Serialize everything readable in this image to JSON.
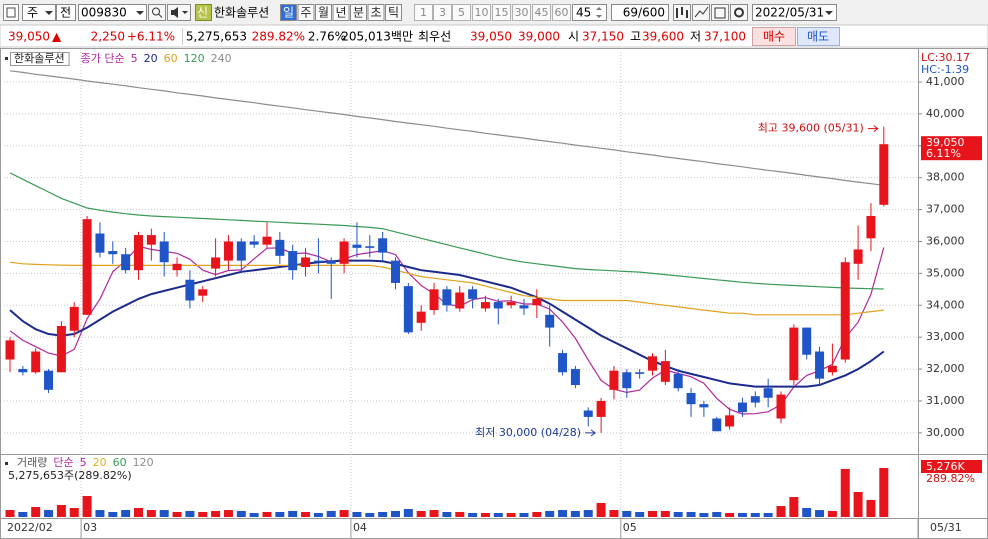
{
  "toolbar": {
    "market": "주",
    "mode": "전",
    "code": "009830",
    "badge": "신",
    "name": "한화솔루션",
    "periods": [
      "일",
      "주",
      "월",
      "년",
      "분",
      "초",
      "틱"
    ],
    "intervals": [
      "1",
      "3",
      "5",
      "10",
      "15",
      "30",
      "45",
      "60"
    ],
    "interval_input": "45",
    "count": "69/600",
    "date": "2022/05/31"
  },
  "quote": {
    "price": "39,050",
    "arrow": "▲",
    "change": "2,250",
    "change_pct": "+6.11%",
    "volume": "5,275,653",
    "volume_ratio": "289.82%",
    "turnover": "2.76%",
    "amount": "205,013백만",
    "best_label": "최우선",
    "ask": "39,050",
    "bid": "39,000",
    "open_label": "시",
    "open": "37,150",
    "high_label": "고",
    "high": "39,600",
    "low_label": "저",
    "low": "37,100",
    "buy": "매수",
    "sell": "매도"
  },
  "chart_data": [
    {
      "type": "candlestick",
      "title": "한화솔루션",
      "line_legend": "종가 단순",
      "up_color": "#e8141c",
      "down_color": "#1f55c6",
      "open": [
        32300,
        32000,
        31900,
        31950,
        31900,
        33200,
        33700,
        36250,
        35700,
        35600,
        35100,
        35900,
        36000,
        35100,
        34800,
        34300,
        35150,
        35400,
        36000,
        36000,
        35900,
        36050,
        35700,
        35200,
        35400,
        35400,
        35300,
        35900,
        35850,
        36100,
        35400,
        34600,
        33450,
        33850,
        34500,
        33900,
        34500,
        33900,
        34100,
        34000,
        34000,
        34000,
        33700,
        32500,
        32000,
        30700,
        30500,
        31350,
        31900,
        31900,
        31950,
        31600,
        31850,
        31250,
        30900,
        30450,
        30200,
        30950,
        31150,
        31400,
        30450,
        31650,
        33300,
        32550,
        31900,
        32300,
        35300,
        36100,
        37150
      ],
      "high": [
        33000,
        32100,
        32650,
        32000,
        33500,
        34100,
        36800,
        36600,
        36000,
        35800,
        36300,
        36400,
        36300,
        35500,
        35100,
        34600,
        36100,
        36200,
        36100,
        36200,
        36600,
        36300,
        35900,
        35800,
        36100,
        35500,
        36100,
        36600,
        36200,
        36300,
        35500,
        34700,
        34000,
        34700,
        34600,
        34600,
        34600,
        34300,
        34200,
        34300,
        34200,
        34500,
        34000,
        32600,
        32100,
        30800,
        31100,
        32100,
        32000,
        32000,
        32500,
        32600,
        32000,
        31400,
        31000,
        30500,
        30800,
        31100,
        31300,
        31700,
        31300,
        33400,
        33300,
        32700,
        32800,
        35500,
        36500,
        37200,
        39600
      ],
      "low": [
        31900,
        31800,
        31850,
        31250,
        31900,
        33000,
        33700,
        35500,
        35300,
        35000,
        34800,
        35400,
        34900,
        34900,
        33900,
        34100,
        34900,
        35100,
        35000,
        35800,
        35800,
        35300,
        34800,
        34900,
        35000,
        34200,
        35000,
        35500,
        35500,
        35400,
        34500,
        33100,
        33200,
        33700,
        33800,
        33800,
        33900,
        33800,
        33400,
        33900,
        33700,
        33600,
        32700,
        31800,
        31400,
        30200,
        30000,
        31050,
        31100,
        31700,
        31800,
        31500,
        31300,
        30500,
        30500,
        30050,
        30100,
        30500,
        30800,
        30800,
        30300,
        31500,
        32300,
        31500,
        31800,
        32200,
        34800,
        35700,
        37100
      ],
      "close": [
        32900,
        31900,
        32550,
        31350,
        33350,
        33950,
        36700,
        35650,
        35600,
        35100,
        36200,
        36200,
        35350,
        35300,
        34150,
        34500,
        35500,
        36000,
        35400,
        35900,
        36150,
        35550,
        35100,
        35500,
        35350,
        35300,
        36000,
        35800,
        35800,
        35650,
        34700,
        33150,
        33800,
        34500,
        34000,
        34400,
        34200,
        34100,
        33900,
        34100,
        33900,
        34200,
        33300,
        31900,
        31500,
        30500,
        31000,
        31950,
        31400,
        31850,
        32400,
        32250,
        31400,
        30900,
        30800,
        30050,
        30550,
        30650,
        30950,
        31100,
        31200,
        33300,
        32450,
        31700,
        32100,
        35350,
        35750,
        36800,
        39050
      ],
      "lines": [
        {
          "name": "5",
          "color": "#b0279f",
          "values": [
            33200,
            32900,
            32700,
            32500,
            32410,
            32620,
            33580,
            34200,
            35050,
            35400,
            35850,
            35750,
            35690,
            35630,
            35440,
            35100,
            34960,
            35090,
            35110,
            35460,
            35790,
            35800,
            35620,
            35640,
            35530,
            35360,
            35450,
            35590,
            35650,
            35710,
            35590,
            35020,
            34620,
            34360,
            34030,
            33970,
            34180,
            34240,
            34120,
            34140,
            34040,
            34040,
            33880,
            33480,
            32960,
            32280,
            31640,
            31370,
            31270,
            31340,
            31720,
            31970,
            31860,
            31760,
            31550,
            31080,
            30740,
            30590,
            30600,
            30660,
            30890,
            31440,
            31800,
            31950,
            32150,
            32980,
            33470,
            34340,
            35810
          ]
        },
        {
          "name": "20",
          "color": "#1c2a8c",
          "values": [
            33850,
            33500,
            33250,
            33100,
            33050,
            33100,
            33300,
            33550,
            33800,
            34000,
            34200,
            34350,
            34450,
            34550,
            34650,
            34750,
            34850,
            34950,
            35050,
            35100,
            35150,
            35200,
            35250,
            35300,
            35350,
            35380,
            35400,
            35400,
            35400,
            35380,
            35300,
            35200,
            35100,
            35050,
            35000,
            34950,
            34850,
            34750,
            34650,
            34550,
            34400,
            34250,
            34050,
            33800,
            33550,
            33300,
            33050,
            32850,
            32650,
            32450,
            32250,
            32100,
            31950,
            31850,
            31750,
            31650,
            31550,
            31500,
            31450,
            31450,
            31450,
            31450,
            31450,
            31500,
            31650,
            31800,
            32000,
            32250,
            32550
          ]
        },
        {
          "name": "60",
          "color": "#e0a21a",
          "values": [
            35350,
            35300,
            35280,
            35270,
            35260,
            35250,
            35250,
            35250,
            35250,
            35250,
            35250,
            35250,
            35250,
            35250,
            35250,
            35250,
            35250,
            35250,
            35250,
            35250,
            35250,
            35250,
            35250,
            35250,
            35250,
            35250,
            35250,
            35250,
            35250,
            35200,
            35100,
            35000,
            34900,
            34850,
            34800,
            34750,
            34700,
            34600,
            34500,
            34400,
            34300,
            34250,
            34200,
            34150,
            34150,
            34150,
            34150,
            34150,
            34150,
            34100,
            34050,
            34000,
            33950,
            33900,
            33850,
            33800,
            33750,
            33750,
            33700,
            33700,
            33700,
            33700,
            33700,
            33700,
            33700,
            33700,
            33750,
            33800,
            33850
          ]
        },
        {
          "name": "120",
          "color": "#3a9a55",
          "values": [
            38150,
            37950,
            37750,
            37550,
            37350,
            37200,
            37050,
            36980,
            36920,
            36870,
            36830,
            36800,
            36780,
            36760,
            36740,
            36720,
            36700,
            36680,
            36660,
            36640,
            36620,
            36600,
            36580,
            36560,
            36540,
            36520,
            36500,
            36470,
            36440,
            36400,
            36300,
            36200,
            36100,
            36000,
            35900,
            35800,
            35700,
            35600,
            35500,
            35420,
            35350,
            35300,
            35250,
            35200,
            35150,
            35120,
            35100,
            35080,
            35060,
            35040,
            35000,
            34960,
            34920,
            34880,
            34840,
            34800,
            34760,
            34720,
            34690,
            34660,
            34640,
            34620,
            34600,
            34580,
            34560,
            34540,
            34530,
            34520,
            34510
          ]
        },
        {
          "name": "240",
          "color": "#8c8c8c",
          "values": [
            41350,
            41300,
            41240,
            41190,
            41140,
            41090,
            41030,
            40980,
            40930,
            40880,
            40820,
            40770,
            40720,
            40660,
            40610,
            40560,
            40500,
            40450,
            40400,
            40350,
            40290,
            40240,
            40190,
            40130,
            40080,
            40030,
            39980,
            39920,
            39870,
            39820,
            39760,
            39710,
            39660,
            39610,
            39550,
            39500,
            39450,
            39390,
            39340,
            39290,
            39240,
            39180,
            39130,
            39080,
            39020,
            38970,
            38920,
            38870,
            38810,
            38760,
            38710,
            38650,
            38600,
            38550,
            38500,
            38440,
            38390,
            38340,
            38280,
            38230,
            38180,
            38130,
            38070,
            38020,
            37970,
            37910,
            37860,
            37810,
            37760
          ]
        }
      ],
      "ylim": [
        29400,
        41940
      ],
      "yticks": [
        {
          "value": 30000,
          "label": "30,000"
        },
        {
          "value": 31000,
          "label": "31,000"
        },
        {
          "value": 32000,
          "label": "32,000"
        },
        {
          "value": 33000,
          "label": "33,000"
        },
        {
          "value": 34000,
          "label": "34,000"
        },
        {
          "value": 35000,
          "label": "35,000"
        },
        {
          "value": 36000,
          "label": "36,000"
        },
        {
          "value": 37000,
          "label": "37,000"
        },
        {
          "value": 38000,
          "label": "38,000"
        },
        {
          "value": 39000,
          "label": "39,000"
        },
        {
          "value": 40000,
          "label": "40,000"
        },
        {
          "value": 41000,
          "label": "41,000"
        }
      ],
      "high_annotation": "최고 39,600 (05/31)",
      "low_annotation": "최저 30,000 (04/28)",
      "lc_label": "LC:30.17",
      "hc_label": "HC:-1.39",
      "last_label": "39,050",
      "last_pct": "6.11%",
      "grid": true
    },
    {
      "type": "bar",
      "title": "거래량",
      "line_legend": "단순",
      "ma_legend": [
        {
          "name": "5",
          "color": "#b0279f"
        },
        {
          "name": "20",
          "color": "#e0b020"
        },
        {
          "name": "60",
          "color": "#3a9a55"
        },
        {
          "name": "120",
          "color": "#8c8c8c"
        }
      ],
      "categories": [
        "2022/02",
        null,
        null,
        null,
        null,
        null,
        "03",
        null,
        null,
        null,
        null,
        null,
        null,
        null,
        null,
        null,
        null,
        null,
        null,
        null,
        null,
        null,
        null,
        null,
        null,
        null,
        null,
        "04",
        null,
        null,
        null,
        null,
        null,
        null,
        null,
        null,
        null,
        null,
        null,
        null,
        null,
        null,
        null,
        null,
        null,
        null,
        null,
        null,
        "05",
        null,
        null,
        null,
        null,
        null,
        null,
        null,
        null,
        null,
        null,
        null,
        null,
        null,
        null,
        null,
        null,
        null,
        null,
        null,
        null
      ],
      "values": [
        750000,
        540000,
        1080000,
        750000,
        1290000,
        970000,
        2260000,
        750000,
        540000,
        750000,
        970000,
        750000,
        750000,
        540000,
        650000,
        540000,
        650000,
        750000,
        650000,
        430000,
        540000,
        540000,
        650000,
        540000,
        430000,
        650000,
        750000,
        540000,
        430000,
        540000,
        650000,
        860000,
        650000,
        750000,
        540000,
        540000,
        430000,
        430000,
        430000,
        430000,
        430000,
        540000,
        650000,
        750000,
        650000,
        750000,
        1510000,
        750000,
        650000,
        540000,
        650000,
        650000,
        540000,
        540000,
        430000,
        540000,
        430000,
        430000,
        430000,
        430000,
        1180000,
        2150000,
        970000,
        750000,
        650000,
        5170000,
        2690000,
        1830000,
        5275653
      ],
      "value_text": "5,275,653주(289.82%)",
      "last_label": "5,276K",
      "last_pct": "289.82%",
      "cursor_date": "05/31",
      "ylim": [
        0,
        6460000
      ]
    }
  ]
}
